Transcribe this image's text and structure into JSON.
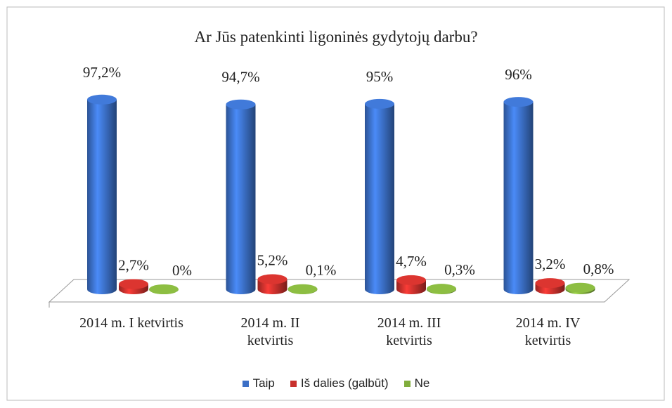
{
  "chart_data": {
    "type": "cylinder3d",
    "title": "Ar Jūs patenkinti ligoninės gydytojų darbu?",
    "categories": [
      "2014 m. I ketvirtis",
      "2014 m. II ketvirtis",
      "2014 m. III ketvirtis",
      "2014 m. IV ketvirtis"
    ],
    "series": [
      {
        "name": "Taip",
        "color": "#3b6fc6",
        "values": [
          97.2,
          94.7,
          95,
          96
        ],
        "value_labels": [
          "97,2%",
          "94,7%",
          "95%",
          "96%"
        ]
      },
      {
        "name": "Iš dalies (galbūt)",
        "color": "#c8302c",
        "values": [
          2.7,
          5.2,
          4.7,
          3.2
        ],
        "value_labels": [
          "2,7%",
          "5,2%",
          "4,7%",
          "3,2%"
        ]
      },
      {
        "name": "Ne",
        "color": "#80ad3c",
        "values": [
          0,
          0.1,
          0.3,
          0.8
        ],
        "value_labels": [
          "0%",
          "0,1%",
          "0,3%",
          "0,8%"
        ]
      }
    ],
    "ylim": [
      0,
      100
    ],
    "legend": "bottom"
  }
}
